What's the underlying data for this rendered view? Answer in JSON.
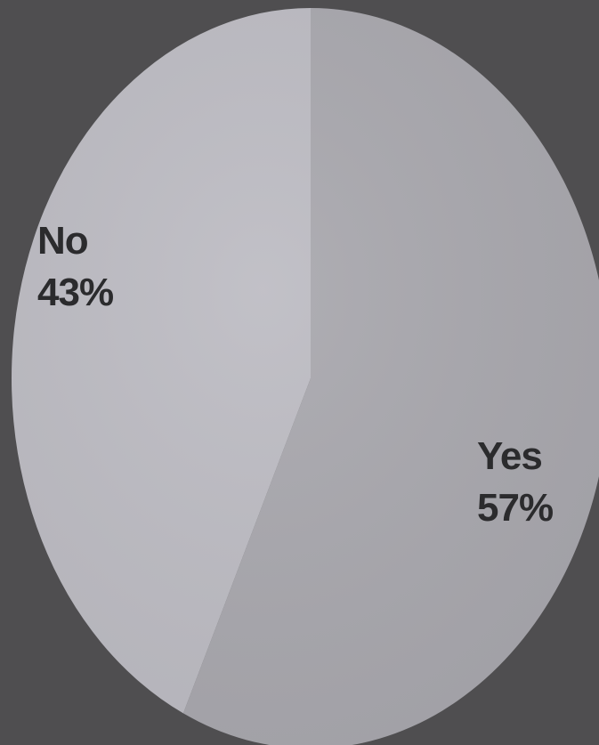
{
  "colors": {
    "background": "#4f4e50",
    "yes_slice": "#a9a8ae",
    "no_slice": "#bdbcc3",
    "label_text": "#2b2b2d"
  },
  "chart_data": {
    "type": "pie",
    "title": "",
    "grid": false,
    "legend": "none",
    "categories": [
      "Yes",
      "No"
    ],
    "values": [
      57,
      43
    ],
    "labels": [
      {
        "name": "Yes",
        "percent": "57%"
      },
      {
        "name": "No",
        "percent": "43%"
      }
    ]
  }
}
